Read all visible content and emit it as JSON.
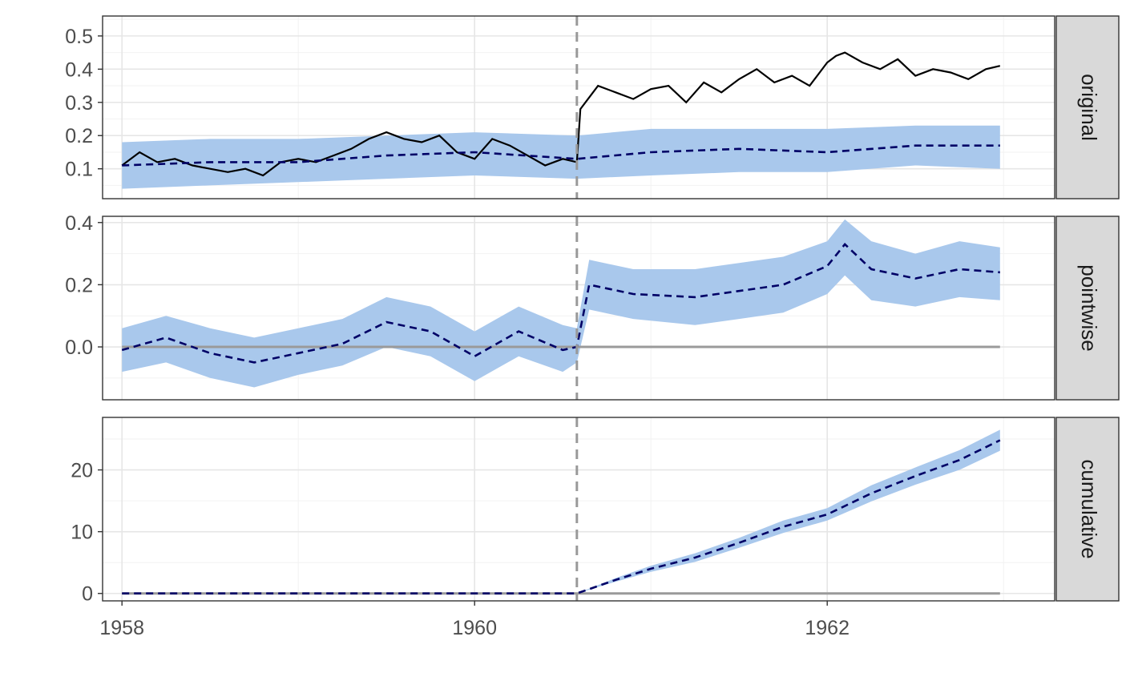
{
  "chart_data": {
    "type": "line",
    "title": "",
    "xlabel": "",
    "ylabel": "",
    "xlim": [
      1957.89,
      1963.29
    ],
    "x_ticks": [
      1958,
      1960,
      1962
    ],
    "x_tick_labels": [
      "1958",
      "1960",
      "1962"
    ],
    "intervention_x": 1960.58,
    "grid": true,
    "colors": {
      "actual": "#000000",
      "predicted": "#000066",
      "interval": "#a9c8ec",
      "baseline": "#9a9a9a",
      "intervention": "#999999",
      "strip": "#d9d9d9"
    },
    "panels": [
      {
        "label": "original",
        "ylim": [
          0.01,
          0.56
        ],
        "y_ticks": [
          0.1,
          0.2,
          0.3,
          0.4,
          0.5
        ],
        "y_tick_labels": [
          "0.1",
          "0.2",
          "0.3",
          "0.4",
          "0.5"
        ],
        "series": [
          {
            "role": "actual",
            "x": [
              1958.0,
              1958.1,
              1958.2,
              1958.3,
              1958.4,
              1958.5,
              1958.6,
              1958.7,
              1958.8,
              1958.9,
              1959.0,
              1959.1,
              1959.2,
              1959.3,
              1959.4,
              1959.5,
              1959.6,
              1959.7,
              1959.8,
              1959.9,
              1960.0,
              1960.1,
              1960.2,
              1960.3,
              1960.4,
              1960.5,
              1960.58,
              1960.6,
              1960.7,
              1960.8,
              1960.9,
              1961.0,
              1961.1,
              1961.2,
              1961.3,
              1961.4,
              1961.5,
              1961.6,
              1961.7,
              1961.8,
              1961.9,
              1962.0,
              1962.05,
              1962.1,
              1962.2,
              1962.3,
              1962.4,
              1962.5,
              1962.6,
              1962.7,
              1962.8,
              1962.9,
              1962.98
            ],
            "y": [
              0.11,
              0.15,
              0.12,
              0.13,
              0.11,
              0.1,
              0.09,
              0.1,
              0.08,
              0.12,
              0.13,
              0.12,
              0.14,
              0.16,
              0.19,
              0.21,
              0.19,
              0.18,
              0.2,
              0.15,
              0.13,
              0.19,
              0.17,
              0.14,
              0.11,
              0.13,
              0.12,
              0.28,
              0.35,
              0.33,
              0.31,
              0.34,
              0.35,
              0.3,
              0.36,
              0.33,
              0.37,
              0.4,
              0.36,
              0.38,
              0.35,
              0.42,
              0.44,
              0.45,
              0.42,
              0.4,
              0.43,
              0.38,
              0.4,
              0.39,
              0.37,
              0.4,
              0.41
            ]
          },
          {
            "role": "predicted",
            "x": [
              1958.0,
              1958.5,
              1959.0,
              1959.5,
              1960.0,
              1960.58,
              1961.0,
              1961.5,
              1962.0,
              1962.5,
              1962.98
            ],
            "y": [
              0.11,
              0.12,
              0.12,
              0.14,
              0.15,
              0.13,
              0.15,
              0.16,
              0.15,
              0.17,
              0.17
            ],
            "lower": [
              0.04,
              0.05,
              0.06,
              0.07,
              0.08,
              0.07,
              0.08,
              0.09,
              0.09,
              0.11,
              0.1
            ],
            "upper": [
              0.18,
              0.19,
              0.19,
              0.2,
              0.21,
              0.2,
              0.22,
              0.22,
              0.22,
              0.23,
              0.23
            ]
          }
        ]
      },
      {
        "label": "pointwise",
        "ylim": [
          -0.17,
          0.42
        ],
        "y_ticks": [
          0.0,
          0.2,
          0.4
        ],
        "y_tick_labels": [
          "0.0",
          "0.2",
          "0.4"
        ],
        "series": [
          {
            "role": "baseline",
            "x": [
              1958.0,
              1962.98
            ],
            "y": [
              0.0,
              0.0
            ]
          },
          {
            "role": "predicted",
            "x": [
              1958.0,
              1958.25,
              1958.5,
              1958.75,
              1959.0,
              1959.25,
              1959.5,
              1959.75,
              1960.0,
              1960.25,
              1960.5,
              1960.58,
              1960.65,
              1960.9,
              1961.25,
              1961.5,
              1961.75,
              1962.0,
              1962.1,
              1962.25,
              1962.5,
              1962.75,
              1962.98
            ],
            "y": [
              -0.01,
              0.03,
              -0.02,
              -0.05,
              -0.02,
              0.01,
              0.08,
              0.05,
              -0.03,
              0.05,
              -0.01,
              0.0,
              0.2,
              0.17,
              0.16,
              0.18,
              0.2,
              0.26,
              0.33,
              0.25,
              0.22,
              0.25,
              0.24
            ],
            "lower": [
              -0.08,
              -0.05,
              -0.1,
              -0.13,
              -0.09,
              -0.06,
              0.0,
              -0.03,
              -0.11,
              -0.03,
              -0.08,
              -0.05,
              0.12,
              0.09,
              0.07,
              0.09,
              0.11,
              0.17,
              0.23,
              0.15,
              0.13,
              0.16,
              0.15
            ],
            "upper": [
              0.06,
              0.1,
              0.06,
              0.03,
              0.06,
              0.09,
              0.16,
              0.13,
              0.05,
              0.13,
              0.07,
              0.06,
              0.28,
              0.25,
              0.25,
              0.27,
              0.29,
              0.34,
              0.41,
              0.34,
              0.3,
              0.34,
              0.32
            ]
          }
        ]
      },
      {
        "label": "cumulative",
        "ylim": [
          -1.2,
          28.5
        ],
        "y_ticks": [
          0,
          10,
          20
        ],
        "y_tick_labels": [
          "0",
          "10",
          "20"
        ],
        "series": [
          {
            "role": "baseline",
            "x": [
              1958.0,
              1962.98
            ],
            "y": [
              0,
              0
            ]
          },
          {
            "role": "predicted",
            "x": [
              1958.0,
              1960.58,
              1960.8,
              1961.0,
              1961.25,
              1961.5,
              1961.75,
              1962.0,
              1962.25,
              1962.5,
              1962.75,
              1962.98
            ],
            "y": [
              0,
              0,
              2.2,
              4.0,
              5.8,
              8.2,
              10.8,
              12.8,
              16.2,
              19.0,
              21.6,
              24.8
            ],
            "lower": [
              0,
              0,
              1.9,
              3.5,
              5.1,
              7.4,
              9.8,
              11.8,
              14.9,
              17.6,
              20.0,
              23.1
            ],
            "upper": [
              0,
              0,
              2.5,
              4.5,
              6.5,
              9.0,
              11.8,
              13.8,
              17.5,
              20.4,
              23.2,
              26.5
            ]
          }
        ]
      }
    ]
  }
}
